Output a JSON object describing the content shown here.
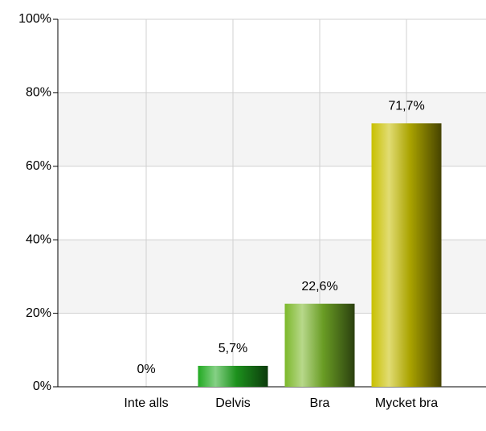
{
  "chart_data": {
    "type": "bar",
    "categories": [
      "Inte alls",
      "Delvis",
      "Bra",
      "Mycket bra"
    ],
    "values": [
      0,
      5.7,
      22.6,
      71.7
    ],
    "value_labels": [
      "0%",
      "5,7%",
      "22,6%",
      "71,7%"
    ],
    "colors": [
      "#22aa22",
      "#22aa22",
      "#7cb82a",
      "#c8c000"
    ],
    "ylim": [
      0,
      100
    ],
    "yticks": [
      {
        "value": 0,
        "label": "0%"
      },
      {
        "value": 20,
        "label": "20%"
      },
      {
        "value": 40,
        "label": "40%"
      },
      {
        "value": 60,
        "label": "60%"
      },
      {
        "value": 80,
        "label": "80%"
      },
      {
        "value": 100,
        "label": "100%"
      }
    ],
    "grid": true
  }
}
